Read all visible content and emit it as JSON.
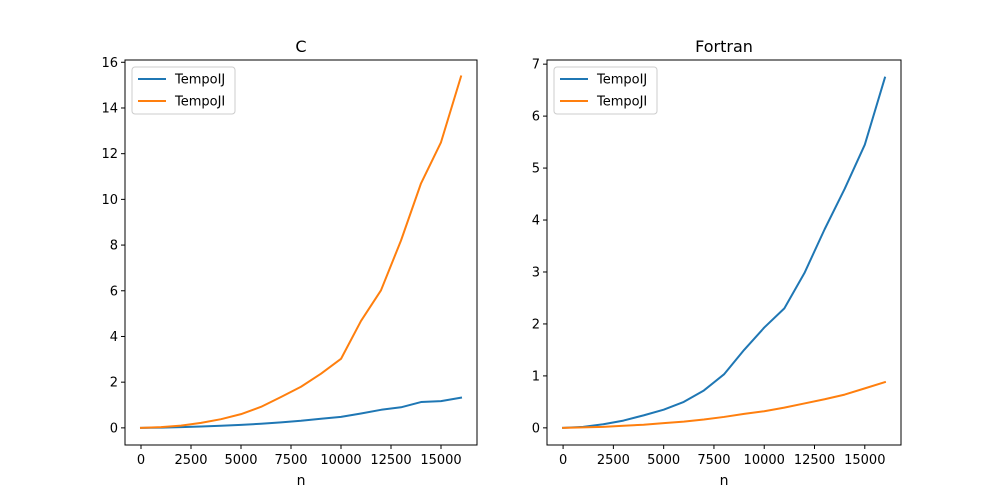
{
  "chart_data": [
    {
      "type": "line",
      "title": "C",
      "xlabel": "n",
      "ylabel": "",
      "xlim": [
        -800,
        16800
      ],
      "ylim": [
        -0.75,
        16.1
      ],
      "xticks": [
        0,
        2500,
        5000,
        7500,
        10000,
        12500,
        15000
      ],
      "xtick_labels": [
        "0",
        "2500",
        "5000",
        "7500",
        "10000",
        "12500",
        "15000"
      ],
      "yticks": [
        0,
        2,
        4,
        6,
        8,
        10,
        12,
        14,
        16
      ],
      "ytick_labels": [
        "0",
        "2",
        "4",
        "6",
        "8",
        "10",
        "12",
        "14",
        "16"
      ],
      "legend": "top-left",
      "grid": false,
      "x": [
        0,
        1000,
        2000,
        3000,
        4000,
        5000,
        6000,
        7000,
        8000,
        9000,
        10000,
        11000,
        12000,
        13000,
        14000,
        15000,
        16000
      ],
      "series": [
        {
          "name": "TempoIJ",
          "color": "#1f77b4",
          "values": [
            0.0,
            0.01,
            0.03,
            0.06,
            0.09,
            0.13,
            0.18,
            0.24,
            0.31,
            0.4,
            0.48,
            0.63,
            0.79,
            0.9,
            1.13,
            1.17,
            1.32
          ]
        },
        {
          "name": "TempoJI",
          "color": "#ff7f0e",
          "values": [
            0.0,
            0.03,
            0.1,
            0.22,
            0.38,
            0.6,
            0.92,
            1.35,
            1.8,
            2.37,
            3.02,
            4.68,
            6.02,
            8.2,
            10.7,
            12.5,
            15.38
          ]
        }
      ]
    },
    {
      "type": "line",
      "title": "Fortran",
      "xlabel": "n",
      "ylabel": "",
      "xlim": [
        -800,
        16800
      ],
      "ylim": [
        -0.33,
        7.08
      ],
      "xticks": [
        0,
        2500,
        5000,
        7500,
        10000,
        12500,
        15000
      ],
      "xtick_labels": [
        "0",
        "2500",
        "5000",
        "7500",
        "10000",
        "12500",
        "15000"
      ],
      "yticks": [
        0,
        1,
        2,
        3,
        4,
        5,
        6,
        7
      ],
      "ytick_labels": [
        "0",
        "1",
        "2",
        "3",
        "4",
        "5",
        "6",
        "7"
      ],
      "legend": "top-left",
      "grid": false,
      "x": [
        0,
        1000,
        2000,
        3000,
        4000,
        5000,
        6000,
        7000,
        8000,
        9000,
        10000,
        11000,
        12000,
        13000,
        14000,
        15000,
        16000
      ],
      "series": [
        {
          "name": "TempoIJ",
          "color": "#1f77b4",
          "values": [
            0.0,
            0.02,
            0.07,
            0.14,
            0.24,
            0.35,
            0.5,
            0.72,
            1.03,
            1.5,
            1.93,
            2.3,
            2.98,
            3.82,
            4.6,
            5.45,
            6.74
          ]
        },
        {
          "name": "TempoJI",
          "color": "#ff7f0e",
          "values": [
            0.0,
            0.01,
            0.02,
            0.04,
            0.06,
            0.09,
            0.12,
            0.16,
            0.21,
            0.27,
            0.32,
            0.39,
            0.47,
            0.55,
            0.64,
            0.76,
            0.88
          ]
        }
      ]
    }
  ]
}
